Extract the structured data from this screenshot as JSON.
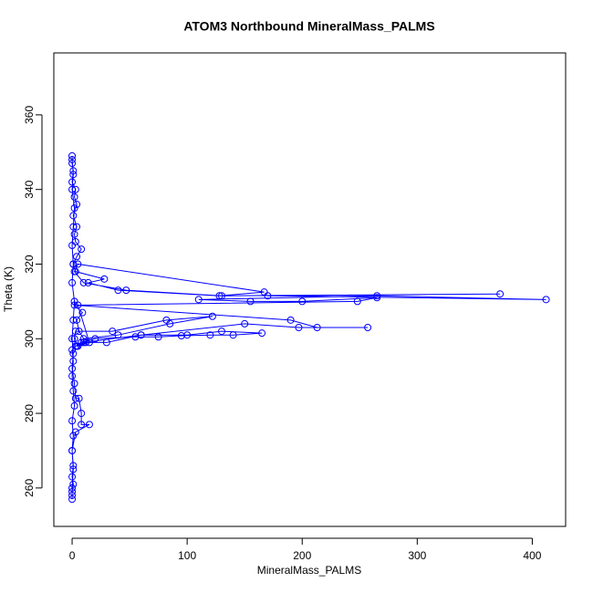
{
  "chart_data": {
    "type": "line",
    "title": "ATOM3 Northbound MineralMass_PALMS",
    "x_label": "MineralMass_PALMS",
    "y_label": "Theta (K)",
    "x": [
      0,
      0,
      1,
      0,
      1,
      0,
      1,
      0,
      2,
      1,
      0,
      1,
      0,
      3,
      8,
      20,
      55,
      75,
      95,
      120,
      140,
      165,
      130,
      100,
      60,
      30,
      12,
      5,
      2,
      3,
      35,
      82,
      122,
      85,
      40,
      10,
      6,
      4,
      9,
      2,
      190,
      213,
      257,
      197,
      150,
      60,
      10,
      4,
      15,
      5,
      248,
      265,
      200,
      155,
      110,
      265,
      412,
      170,
      372,
      130,
      47,
      10,
      2,
      5,
      167,
      128,
      40,
      14,
      28,
      3,
      1,
      4,
      8,
      3,
      2,
      4,
      1,
      4,
      2,
      3,
      0,
      1,
      0,
      0,
      0,
      1,
      0,
      2,
      1,
      0,
      1,
      0,
      2,
      1,
      0,
      1,
      0,
      2,
      3,
      6,
      8,
      8,
      15,
      3,
      0,
      1,
      0,
      0
    ],
    "series": [
      {
        "color": "#0000ff",
        "values": [
          257,
          259,
          261,
          263,
          266,
          270,
          274,
          278,
          282,
          286,
          290,
          294,
          297,
          298,
          299,
          300,
          300.5,
          300.5,
          300.8,
          301,
          301,
          301.5,
          302,
          301,
          301,
          299,
          299,
          298,
          300,
          302,
          302,
          305,
          306,
          304,
          301,
          300,
          302,
          305,
          307,
          309,
          305,
          303,
          303,
          303,
          304,
          301,
          299,
          298,
          299,
          309,
          310,
          311,
          310,
          310,
          310.5,
          311.5,
          310.5,
          311.5,
          312,
          311.5,
          313,
          315,
          318,
          320,
          312.5,
          311.5,
          313,
          315,
          316,
          318,
          320,
          322,
          324,
          326,
          328,
          330,
          333,
          336,
          338,
          340,
          342,
          345,
          347,
          349,
          348,
          344,
          340,
          335,
          330,
          325,
          320,
          315,
          310,
          305,
          300,
          296,
          292,
          288,
          284,
          284,
          280,
          277,
          277,
          275,
          270,
          265,
          260,
          258
        ]
      }
    ],
    "xlim": [
      -15.9,
      429
    ],
    "ylim": [
      249.7,
      376.6
    ],
    "xticks": [
      0,
      100,
      200,
      300,
      400
    ],
    "yticks": [
      260,
      280,
      300,
      320,
      340,
      360
    ]
  }
}
